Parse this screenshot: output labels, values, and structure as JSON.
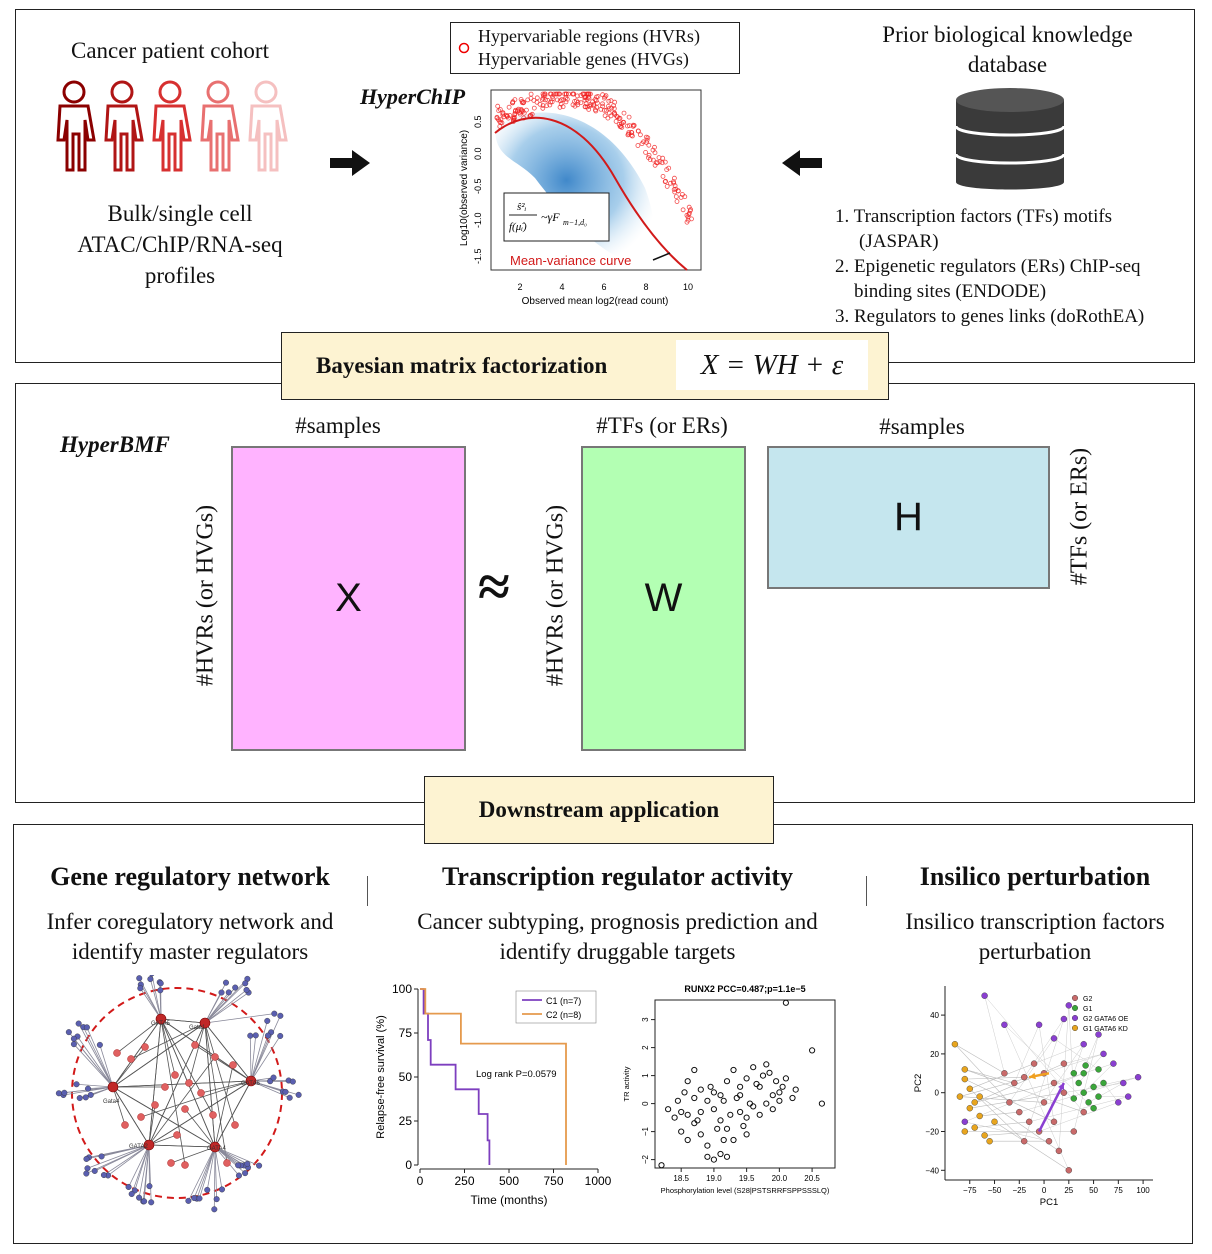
{
  "top": {
    "cohort_title": "Cancer patient cohort",
    "profiles_text": [
      "Bulk/single cell",
      "ATAC/ChIP/RNA-seq",
      "profiles"
    ],
    "hyperchip_label": "HyperChIP",
    "legend": {
      "line1": "Hypervariable regions (HVRs)",
      "line2": "Hypervariable genes (HVGs)"
    },
    "plot": {
      "ylabel": "Log10(observed variance)",
      "xlabel": "Observed mean log2(read count)",
      "xticks": [
        "2",
        "4",
        "6",
        "8",
        "10"
      ],
      "yticks": [
        "0.5",
        "0.0",
        "-0.5",
        "-1.0",
        "-1.5"
      ],
      "curve_label": "Mean-variance curve",
      "formula": "~γF",
      "formula_sub": "m−1,d₀"
    },
    "db_title": [
      "Prior biological knowledge",
      "database"
    ],
    "db_items": [
      [
        "1. Transcription factors (TFs) motifs",
        "(JASPAR)"
      ],
      [
        "2. Epigenetic regulators (ERs) ChIP-seq",
        "binding sites (ENDODE)"
      ],
      [
        "3. Regulators to genes links (doRothEA)",
        ""
      ]
    ]
  },
  "bmf": {
    "banner": "Bayesian matrix factorization",
    "equation": "X = WH + ε",
    "hyperbmf_label": "HyperBMF",
    "x_label": "X",
    "w_label": "W",
    "h_label": "H",
    "approx": "≈",
    "samples1": "#samples",
    "tfs_top": "#TFs (or ERs)",
    "samples2": "#samples",
    "hvrs1": "#HVRs (or HVGs)",
    "hvrs2": "#HVRs (or HVGs)",
    "tfs_right": "#TFs (or ERs)",
    "colors": {
      "x": "#ffb3ff",
      "w": "#b3ffb3",
      "h": "#c5e6ee"
    }
  },
  "downstream": {
    "banner": "Downstream application",
    "col1": {
      "title": "Gene regulatory network",
      "desc": [
        "Infer coregulatory network and",
        "identify master regulators"
      ],
      "hubs": [
        "GATA5",
        "Gata1",
        "Gata4",
        "GATA6",
        "GATA2",
        "GATA4"
      ]
    },
    "col2": {
      "title": "Transcription regulator activity",
      "desc": [
        "Cancer subtyping, prognosis prediction and",
        "identify druggable targets"
      ]
    },
    "col3": {
      "title": "Insilico perturbation",
      "desc": [
        "Insilico transcription factors",
        "perturbation"
      ]
    }
  },
  "km_chart": {
    "type": "line",
    "ylabel": "Relapse-free survival (%)",
    "xlabel": "Time (months)",
    "xticks": [
      "0",
      "250",
      "500",
      "750",
      "1000"
    ],
    "yticks": [
      "100",
      "75",
      "50",
      "25",
      "0"
    ],
    "xlim": [
      0,
      1000
    ],
    "ylim": [
      0,
      100
    ],
    "annotation": "Log rank P=0.0579",
    "series": [
      {
        "name": "C1 (n=7)",
        "color": "#7d3fbf",
        "steps": [
          [
            0,
            100
          ],
          [
            20,
            100
          ],
          [
            20,
            86
          ],
          [
            45,
            86
          ],
          [
            45,
            71
          ],
          [
            60,
            71
          ],
          [
            60,
            57
          ],
          [
            200,
            57
          ],
          [
            200,
            43
          ],
          [
            330,
            43
          ],
          [
            330,
            29
          ],
          [
            380,
            29
          ],
          [
            380,
            14
          ],
          [
            390,
            14
          ],
          [
            390,
            0
          ]
        ]
      },
      {
        "name": "C2 (n=8)",
        "color": "#e59a4d",
        "steps": [
          [
            0,
            100
          ],
          [
            30,
            100
          ],
          [
            30,
            86
          ],
          [
            230,
            86
          ],
          [
            230,
            69
          ],
          [
            820,
            69
          ],
          [
            820,
            0
          ]
        ]
      }
    ]
  },
  "scatter_chart": {
    "type": "scatter",
    "title": "RUNX2 PCC=0.487;p=1.1e−5",
    "ylabel": "TR activity",
    "xlabel": "Phosphorylation level (S28|PSTSRRFSPPSSSLQ)",
    "xticks": [
      "18.5",
      "19.0",
      "19.5",
      "20.0",
      "20.5"
    ],
    "yticks": [
      "3",
      "2",
      "1",
      "0",
      "−1",
      "−2"
    ],
    "xlim": [
      18.1,
      20.85
    ],
    "ylim": [
      -2.3,
      3.7
    ],
    "points": [
      [
        20.1,
        3.6
      ],
      [
        20.5,
        1.9
      ],
      [
        20.65,
        0
      ],
      [
        18.6,
        0.8
      ],
      [
        18.7,
        1.2
      ],
      [
        18.8,
        0.5
      ],
      [
        18.9,
        0.1
      ],
      [
        19.0,
        0.4
      ],
      [
        19.1,
        0.3
      ],
      [
        19.2,
        0.8
      ],
      [
        19.3,
        1.2
      ],
      [
        19.4,
        0.6
      ],
      [
        19.5,
        0.9
      ],
      [
        19.6,
        1.3
      ],
      [
        19.7,
        0.6
      ],
      [
        19.8,
        1.4
      ],
      [
        19.9,
        0.3
      ],
      [
        20.0,
        0.4
      ],
      [
        20.1,
        0.9
      ],
      [
        20.2,
        0.2
      ],
      [
        18.3,
        -0.2
      ],
      [
        18.4,
        -0.5
      ],
      [
        18.5,
        -1.0
      ],
      [
        18.6,
        -0.4
      ],
      [
        18.7,
        -0.7
      ],
      [
        18.8,
        -1.1
      ],
      [
        18.9,
        -1.5
      ],
      [
        19.0,
        -0.2
      ],
      [
        19.1,
        -0.6
      ],
      [
        19.2,
        -0.9
      ],
      [
        19.3,
        -1.3
      ],
      [
        19.4,
        -0.3
      ],
      [
        19.5,
        -0.5
      ],
      [
        19.6,
        -0.1
      ],
      [
        19.7,
        -0.4
      ],
      [
        19.8,
        0.0
      ],
      [
        19.9,
        -0.2
      ],
      [
        20.0,
        0.1
      ],
      [
        18.9,
        -1.9
      ],
      [
        19.0,
        -2.0
      ],
      [
        19.1,
        -1.8
      ],
      [
        19.2,
        -1.9
      ],
      [
        18.2,
        -2.2
      ],
      [
        18.5,
        -0.3
      ],
      [
        18.6,
        -1.3
      ],
      [
        18.7,
        0.2
      ],
      [
        18.8,
        -0.3
      ],
      [
        18.95,
        0.6
      ],
      [
        19.05,
        -0.9
      ],
      [
        19.15,
        0.1
      ],
      [
        19.25,
        -0.4
      ],
      [
        19.35,
        0.2
      ],
      [
        19.45,
        -0.8
      ],
      [
        19.55,
        0.0
      ],
      [
        19.65,
        0.7
      ],
      [
        19.75,
        1.0
      ],
      [
        19.85,
        1.1
      ],
      [
        19.95,
        0.8
      ],
      [
        20.05,
        0.6
      ],
      [
        18.45,
        0.1
      ],
      [
        18.55,
        0.4
      ],
      [
        19.5,
        -1.1
      ],
      [
        19.4,
        0.3
      ],
      [
        18.75,
        -0.6
      ],
      [
        19.15,
        -1.3
      ],
      [
        20.25,
        0.5
      ]
    ]
  },
  "pca_chart": {
    "type": "scatter",
    "ylabel": "PC2",
    "xlabel": "PC1",
    "xticks": [
      "−75",
      "−50",
      "−25",
      "0",
      "25",
      "50",
      "75",
      "100"
    ],
    "yticks": [
      "40",
      "20",
      "0",
      "−20",
      "−40"
    ],
    "xlim": [
      -100,
      110
    ],
    "ylim": [
      -45,
      55
    ],
    "legend": [
      {
        "name": "G2",
        "color": "#c96a6a"
      },
      {
        "name": "G1",
        "color": "#3aa63a"
      },
      {
        "name": "G2 GATA6 OE",
        "color": "#8a3fd1"
      },
      {
        "name": "G1 GATA6 KD",
        "color": "#e8a51e"
      }
    ],
    "groups": [
      {
        "name": "G2",
        "color": "#c96a6a",
        "points": [
          [
            -40,
            10
          ],
          [
            -30,
            5
          ],
          [
            -20,
            8
          ],
          [
            -10,
            15
          ],
          [
            0,
            10
          ],
          [
            10,
            5
          ],
          [
            20,
            0
          ],
          [
            -25,
            -10
          ],
          [
            -15,
            -15
          ],
          [
            -5,
            -20
          ],
          [
            5,
            -25
          ],
          [
            15,
            -30
          ],
          [
            25,
            -40
          ],
          [
            30,
            -20
          ],
          [
            -35,
            -5
          ],
          [
            40,
            -10
          ],
          [
            10,
            -15
          ],
          [
            -20,
            -25
          ],
          [
            0,
            -5
          ],
          [
            20,
            15
          ]
        ]
      },
      {
        "name": "G1",
        "color": "#3aa63a",
        "points": [
          [
            30,
            10
          ],
          [
            35,
            5
          ],
          [
            40,
            0
          ],
          [
            45,
            -5
          ],
          [
            50,
            3
          ],
          [
            55,
            -2
          ],
          [
            60,
            5
          ],
          [
            40,
            10
          ],
          [
            30,
            -3
          ],
          [
            50,
            -8
          ],
          [
            42,
            14
          ],
          [
            55,
            12
          ]
        ]
      },
      {
        "name": "G2 GATA6 OE",
        "color": "#8a3fd1",
        "points": [
          [
            -60,
            50
          ],
          [
            -5,
            35
          ],
          [
            20,
            38
          ],
          [
            40,
            25
          ],
          [
            60,
            20
          ],
          [
            70,
            15
          ],
          [
            80,
            5
          ],
          [
            95,
            8
          ],
          [
            85,
            -2
          ],
          [
            75,
            -5
          ],
          [
            -80,
            -15
          ],
          [
            25,
            45
          ],
          [
            -40,
            35
          ],
          [
            55,
            30
          ],
          [
            10,
            28
          ]
        ]
      },
      {
        "name": "G1 GATA6 KD",
        "color": "#e8a51e",
        "points": [
          [
            -90,
            25
          ],
          [
            -80,
            12
          ],
          [
            -80,
            7
          ],
          [
            -75,
            2
          ],
          [
            -85,
            -2
          ],
          [
            -70,
            -5
          ],
          [
            -75,
            -8
          ],
          [
            -65,
            -12
          ],
          [
            -70,
            -18
          ],
          [
            -60,
            -22
          ],
          [
            -55,
            -25
          ],
          [
            -65,
            -2
          ],
          [
            -50,
            -15
          ],
          [
            -80,
            -20
          ]
        ]
      }
    ],
    "arrows": [
      {
        "from": [
          5,
          10
        ],
        "to": [
          -15,
          8
        ],
        "color": "#f0a020"
      },
      {
        "from": [
          -5,
          -20
        ],
        "to": [
          20,
          5
        ],
        "color": "#8a3fd1"
      }
    ]
  }
}
